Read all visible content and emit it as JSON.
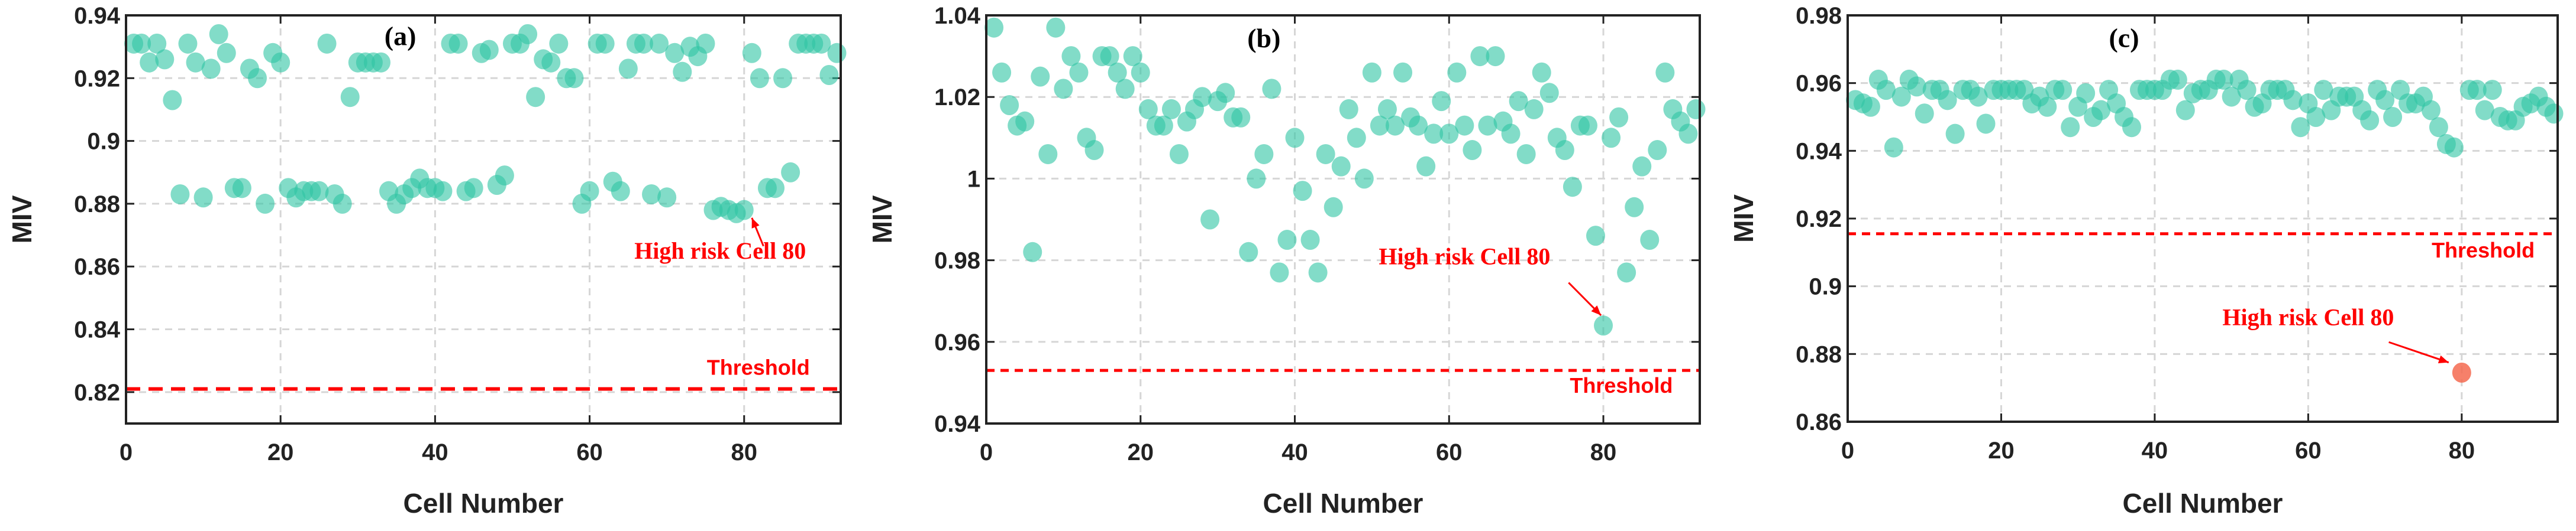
{
  "chart_data": [
    {
      "type": "scatter",
      "panel_label": "(a)",
      "xlabel": "Cell Number",
      "ylabel": "MIV",
      "xlim": [
        0,
        92.5
      ],
      "ylim": [
        0.81,
        0.94
      ],
      "xticks": [
        0,
        20,
        40,
        60,
        80
      ],
      "xtick_labels": [
        "0",
        "20",
        "40",
        "60",
        "80"
      ],
      "yticks": [
        0.82,
        0.84,
        0.86,
        0.88,
        0.9,
        0.92,
        0.94
      ],
      "ytick_labels": [
        "0.82",
        "0.84",
        "0.86",
        "0.88",
        "0.9",
        "0.92",
        "0.94"
      ],
      "grid": true,
      "threshold": 0.821,
      "threshold_label": "Threshold",
      "annotation": "High risk Cell 80",
      "highlight_cell": 80,
      "point_color": "#2ec4a4",
      "highlight_color": null,
      "threshold_color": "#ff0000",
      "x": [
        1,
        2,
        3,
        4,
        5,
        6,
        7,
        8,
        9,
        10,
        11,
        12,
        13,
        14,
        15,
        16,
        17,
        18,
        19,
        20,
        21,
        22,
        23,
        24,
        25,
        26,
        27,
        28,
        29,
        30,
        31,
        32,
        33,
        34,
        35,
        36,
        37,
        38,
        39,
        40,
        41,
        42,
        43,
        44,
        45,
        46,
        47,
        48,
        49,
        50,
        51,
        52,
        53,
        54,
        55,
        56,
        57,
        58,
        59,
        60,
        61,
        62,
        63,
        64,
        65,
        66,
        67,
        68,
        69,
        70,
        71,
        72,
        73,
        74,
        75,
        76,
        77,
        78,
        79,
        80,
        81,
        82,
        83,
        84,
        85,
        86,
        87,
        88,
        89,
        90,
        91,
        92
      ],
      "y": [
        0.931,
        0.931,
        0.925,
        0.931,
        0.926,
        0.913,
        0.883,
        0.931,
        0.925,
        0.882,
        0.923,
        0.934,
        0.928,
        0.885,
        0.885,
        0.923,
        0.92,
        0.88,
        0.928,
        0.925,
        0.885,
        0.882,
        0.884,
        0.884,
        0.884,
        0.931,
        0.883,
        0.88,
        0.914,
        0.925,
        0.925,
        0.925,
        0.925,
        0.884,
        0.88,
        0.883,
        0.885,
        0.888,
        0.885,
        0.885,
        0.884,
        0.931,
        0.931,
        0.884,
        0.885,
        0.928,
        0.929,
        0.886,
        0.889,
        0.931,
        0.931,
        0.934,
        0.914,
        0.926,
        0.925,
        0.931,
        0.92,
        0.92,
        0.88,
        0.884,
        0.931,
        0.931,
        0.887,
        0.884,
        0.923,
        0.931,
        0.931,
        0.883,
        0.931,
        0.882,
        0.928,
        0.922,
        0.93,
        0.927,
        0.931,
        0.878,
        0.879,
        0.878,
        0.877,
        0.878,
        0.928,
        0.92,
        0.885,
        0.885,
        0.92,
        0.89,
        0.931,
        0.931,
        0.931,
        0.931,
        0.921,
        0.928
      ]
    },
    {
      "type": "scatter",
      "panel_label": "(b)",
      "xlabel": "Cell Number",
      "ylabel": "MIV",
      "xlim": [
        0,
        92.5
      ],
      "ylim": [
        0.94,
        1.04
      ],
      "xticks": [
        0,
        20,
        40,
        60,
        80
      ],
      "xtick_labels": [
        "0",
        "20",
        "40",
        "60",
        "80"
      ],
      "yticks": [
        0.94,
        0.96,
        0.98,
        1.0,
        1.02,
        1.04
      ],
      "ytick_labels": [
        "0.94",
        "0.96",
        "0.98",
        "1",
        "1.02",
        "1.04"
      ],
      "grid": true,
      "threshold": 0.953,
      "threshold_label": "Threshold",
      "annotation": "High risk Cell 80",
      "highlight_cell": 80,
      "point_color": "#2ec4a4",
      "highlight_color": null,
      "threshold_color": "#ff0000",
      "x": [
        1,
        2,
        3,
        4,
        5,
        6,
        7,
        8,
        9,
        10,
        11,
        12,
        13,
        14,
        15,
        16,
        17,
        18,
        19,
        20,
        21,
        22,
        23,
        24,
        25,
        26,
        27,
        28,
        29,
        30,
        31,
        32,
        33,
        34,
        35,
        36,
        37,
        38,
        39,
        40,
        41,
        42,
        43,
        44,
        45,
        46,
        47,
        48,
        49,
        50,
        51,
        52,
        53,
        54,
        55,
        56,
        57,
        58,
        59,
        60,
        61,
        62,
        63,
        64,
        65,
        66,
        67,
        68,
        69,
        70,
        71,
        72,
        73,
        74,
        75,
        76,
        77,
        78,
        79,
        80,
        81,
        82,
        83,
        84,
        85,
        86,
        87,
        88,
        89,
        90,
        91,
        92
      ],
      "y": [
        1.037,
        1.026,
        1.018,
        1.013,
        1.014,
        0.982,
        1.025,
        1.006,
        1.037,
        1.022,
        1.03,
        1.026,
        1.01,
        1.007,
        1.03,
        1.03,
        1.026,
        1.022,
        1.03,
        1.026,
        1.017,
        1.013,
        1.013,
        1.017,
        1.006,
        1.014,
        1.017,
        1.02,
        0.99,
        1.019,
        1.021,
        1.015,
        1.015,
        0.982,
        1.0,
        1.006,
        1.022,
        0.977,
        0.985,
        1.01,
        0.997,
        0.985,
        0.977,
        1.006,
        0.993,
        1.003,
        1.017,
        1.01,
        1.0,
        1.026,
        1.013,
        1.017,
        1.013,
        1.026,
        1.015,
        1.013,
        1.003,
        1.011,
        1.019,
        1.011,
        1.026,
        1.013,
        1.007,
        1.03,
        1.013,
        1.03,
        1.014,
        1.011,
        1.019,
        1.006,
        1.017,
        1.026,
        1.021,
        1.01,
        1.007,
        0.998,
        1.013,
        1.013,
        0.986,
        0.964,
        1.01,
        1.015,
        0.977,
        0.993,
        1.003,
        0.985,
        1.007,
        1.026,
        1.017,
        1.014,
        1.011,
        1.017
      ]
    },
    {
      "type": "scatter",
      "panel_label": "(c)",
      "xlabel": "Cell Number",
      "ylabel": "MIV",
      "xlim": [
        0,
        92.5
      ],
      "ylim": [
        0.86,
        0.98
      ],
      "xticks": [
        0,
        20,
        40,
        60,
        80
      ],
      "xtick_labels": [
        "0",
        "20",
        "40",
        "60",
        "80"
      ],
      "yticks": [
        0.86,
        0.88,
        0.9,
        0.92,
        0.94,
        0.96,
        0.98
      ],
      "ytick_labels": [
        "0.86",
        "0.88",
        "0.9",
        "0.92",
        "0.94",
        "0.96",
        "0.98"
      ],
      "grid": true,
      "threshold": 0.9155,
      "threshold_label": "Threshold",
      "annotation": "High risk Cell 80",
      "highlight_cell": 80,
      "point_color": "#2ec4a4",
      "highlight_color": "#f46a50",
      "threshold_color": "#ff0000",
      "x": [
        1,
        2,
        3,
        4,
        5,
        6,
        7,
        8,
        9,
        10,
        11,
        12,
        13,
        14,
        15,
        16,
        17,
        18,
        19,
        20,
        21,
        22,
        23,
        24,
        25,
        26,
        27,
        28,
        29,
        30,
        31,
        32,
        33,
        34,
        35,
        36,
        37,
        38,
        39,
        40,
        41,
        42,
        43,
        44,
        45,
        46,
        47,
        48,
        49,
        50,
        51,
        52,
        53,
        54,
        55,
        56,
        57,
        58,
        59,
        60,
        61,
        62,
        63,
        64,
        65,
        66,
        67,
        68,
        69,
        70,
        71,
        72,
        73,
        74,
        75,
        76,
        77,
        78,
        79,
        80,
        81,
        82,
        83,
        84,
        85,
        86,
        87,
        88,
        89,
        90,
        91,
        92
      ],
      "y": [
        0.955,
        0.954,
        0.953,
        0.961,
        0.958,
        0.941,
        0.956,
        0.961,
        0.959,
        0.951,
        0.958,
        0.958,
        0.955,
        0.945,
        0.958,
        0.958,
        0.956,
        0.948,
        0.958,
        0.958,
        0.958,
        0.958,
        0.958,
        0.954,
        0.956,
        0.953,
        0.958,
        0.958,
        0.947,
        0.953,
        0.957,
        0.95,
        0.952,
        0.958,
        0.954,
        0.95,
        0.947,
        0.958,
        0.958,
        0.958,
        0.958,
        0.961,
        0.961,
        0.952,
        0.957,
        0.958,
        0.958,
        0.961,
        0.961,
        0.956,
        0.961,
        0.958,
        0.953,
        0.954,
        0.958,
        0.958,
        0.958,
        0.955,
        0.947,
        0.954,
        0.95,
        0.958,
        0.952,
        0.956,
        0.956,
        0.956,
        0.952,
        0.949,
        0.958,
        0.955,
        0.95,
        0.958,
        0.954,
        0.954,
        0.956,
        0.952,
        0.947,
        0.942,
        0.941,
        0.8745,
        0.958,
        0.958,
        0.952,
        0.958,
        0.95,
        0.949,
        0.949,
        0.953,
        0.954,
        0.956,
        0.953,
        0.951
      ]
    }
  ]
}
